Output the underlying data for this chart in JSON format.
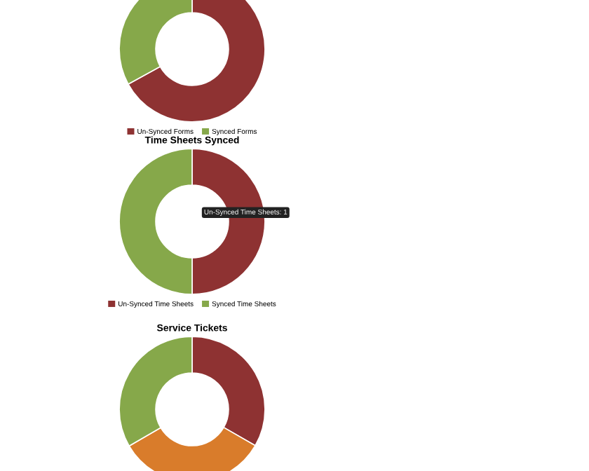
{
  "chart_data": [
    {
      "type": "donut",
      "categories": [
        "Un-Synced Forms",
        "Synced Forms"
      ],
      "values": [
        67,
        33
      ],
      "colors": [
        "#8e3232",
        "#86a84a"
      ],
      "legend": "bottom"
    },
    {
      "type": "donut",
      "title": "Time Sheets Synced",
      "categories": [
        "Un-Synced Time Sheets",
        "Synced Time Sheets"
      ],
      "values": [
        50,
        50
      ],
      "colors": [
        "#8e3232",
        "#86a84a"
      ],
      "legend": "bottom",
      "annotations": [
        "Un-Synced Time Sheets: 1"
      ]
    },
    {
      "type": "donut",
      "title": "Service Tickets",
      "categories": [
        null,
        null,
        null
      ],
      "values": [
        33.3,
        33.3,
        33.4
      ],
      "colors": [
        "#8e3232",
        "#d97c2b",
        "#86a84a"
      ]
    }
  ]
}
